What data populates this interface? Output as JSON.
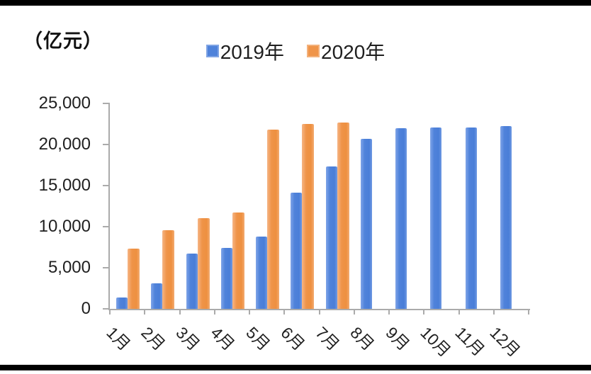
{
  "chart_data": {
    "type": "bar",
    "unit_label": "（亿元）",
    "categories": [
      "1月",
      "2月",
      "3月",
      "4月",
      "5月",
      "6月",
      "7月",
      "8月",
      "9月",
      "10月",
      "11月",
      "12月"
    ],
    "series": [
      {
        "name": "2019年",
        "color": "#4E82DA",
        "values": [
          1400,
          3100,
          6700,
          7400,
          8800,
          14100,
          17300,
          20700,
          22000,
          22100,
          22100,
          22200
        ]
      },
      {
        "name": "2020年",
        "color": "#EF9449",
        "values": [
          7300,
          9600,
          11000,
          11700,
          21800,
          22500,
          22700,
          null,
          null,
          null,
          null,
          null
        ]
      }
    ],
    "ylim": [
      0,
      25000
    ],
    "ytick_step": 5000,
    "ytick_labels": [
      "0",
      "5,000",
      "10,000",
      "15,000",
      "20,000",
      "25,000"
    ],
    "legend_position": "top-center",
    "grid": false,
    "axis_color": "#ABABAB",
    "text_color": "#1F1F1F"
  }
}
